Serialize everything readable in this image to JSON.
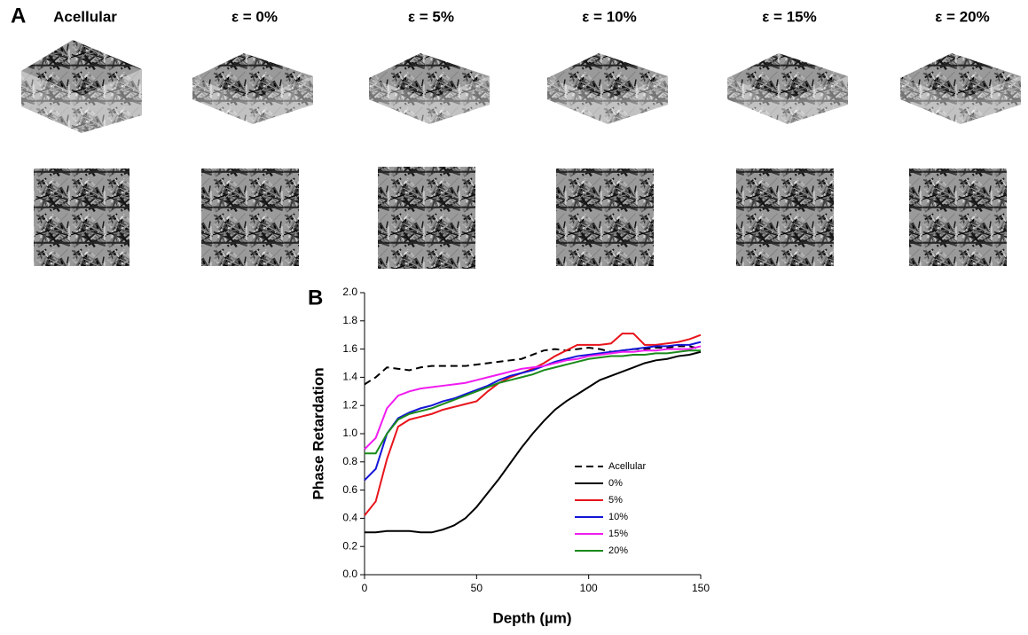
{
  "panel_a": {
    "label": "A",
    "titles": [
      "Acellular",
      "ε = 0%",
      "ε = 5%",
      "ε = 10%",
      "ε = 15%",
      "ε = 20%"
    ]
  },
  "chart_data": {
    "type": "line",
    "panel_label": "B",
    "x_label": "Depth (µm)",
    "y_label": "Phase Retardation",
    "x": [
      0,
      5,
      10,
      15,
      20,
      25,
      30,
      35,
      40,
      45,
      50,
      55,
      60,
      65,
      70,
      75,
      80,
      85,
      90,
      95,
      100,
      105,
      110,
      115,
      120,
      125,
      130,
      135,
      140,
      145,
      150
    ],
    "series": [
      {
        "name": "Acellular",
        "color": "#000000",
        "dashed": true,
        "values": [
          1.35,
          1.4,
          1.47,
          1.46,
          1.45,
          1.47,
          1.48,
          1.48,
          1.48,
          1.48,
          1.49,
          1.5,
          1.51,
          1.52,
          1.53,
          1.56,
          1.59,
          1.6,
          1.59,
          1.6,
          1.61,
          1.6,
          1.58,
          1.59,
          1.6,
          1.6,
          1.61,
          1.61,
          1.62,
          1.62,
          1.6
        ]
      },
      {
        "name": "0%",
        "color": "#000000",
        "values": [
          0.3,
          0.3,
          0.31,
          0.31,
          0.31,
          0.3,
          0.3,
          0.32,
          0.35,
          0.4,
          0.48,
          0.58,
          0.68,
          0.79,
          0.9,
          1.0,
          1.09,
          1.17,
          1.23,
          1.28,
          1.33,
          1.38,
          1.41,
          1.44,
          1.47,
          1.5,
          1.52,
          1.53,
          1.55,
          1.56,
          1.58
        ]
      },
      {
        "name": "5%",
        "color": "#e8141b",
        "values": [
          0.42,
          0.52,
          0.82,
          1.05,
          1.1,
          1.12,
          1.14,
          1.17,
          1.19,
          1.21,
          1.23,
          1.3,
          1.36,
          1.4,
          1.43,
          1.46,
          1.5,
          1.55,
          1.59,
          1.63,
          1.63,
          1.63,
          1.64,
          1.71,
          1.71,
          1.63,
          1.63,
          1.64,
          1.65,
          1.67,
          1.7
        ]
      },
      {
        "name": "10%",
        "color": "#1414d8",
        "values": [
          0.67,
          0.75,
          1.0,
          1.11,
          1.15,
          1.18,
          1.2,
          1.23,
          1.25,
          1.28,
          1.31,
          1.34,
          1.38,
          1.41,
          1.43,
          1.45,
          1.48,
          1.51,
          1.53,
          1.55,
          1.56,
          1.57,
          1.58,
          1.59,
          1.6,
          1.61,
          1.62,
          1.62,
          1.63,
          1.63,
          1.65
        ]
      },
      {
        "name": "15%",
        "color": "#f01cf0",
        "values": [
          0.89,
          0.97,
          1.18,
          1.27,
          1.3,
          1.32,
          1.33,
          1.34,
          1.35,
          1.36,
          1.38,
          1.4,
          1.42,
          1.44,
          1.46,
          1.47,
          1.48,
          1.5,
          1.52,
          1.53,
          1.55,
          1.56,
          1.57,
          1.58,
          1.58,
          1.59,
          1.59,
          1.6,
          1.6,
          1.6,
          1.62
        ]
      },
      {
        "name": "20%",
        "color": "#1a8a1a",
        "values": [
          0.86,
          0.86,
          1.0,
          1.1,
          1.14,
          1.16,
          1.18,
          1.21,
          1.24,
          1.27,
          1.3,
          1.33,
          1.36,
          1.38,
          1.4,
          1.42,
          1.45,
          1.47,
          1.49,
          1.51,
          1.53,
          1.54,
          1.55,
          1.55,
          1.56,
          1.56,
          1.57,
          1.57,
          1.58,
          1.59,
          1.59
        ]
      }
    ],
    "xlim": [
      0,
      150
    ],
    "xticks": [
      0,
      50,
      100,
      150
    ],
    "ylim": [
      0,
      2
    ],
    "yticks": [
      {
        "value": 0,
        "label": "0.0"
      },
      0.2,
      0.4,
      0.6,
      0.8,
      {
        "value": 1,
        "label": "1.0"
      },
      1.2,
      1.4,
      1.6,
      1.8,
      {
        "value": 2,
        "label": "2.0"
      }
    ],
    "legend": "lower right"
  }
}
